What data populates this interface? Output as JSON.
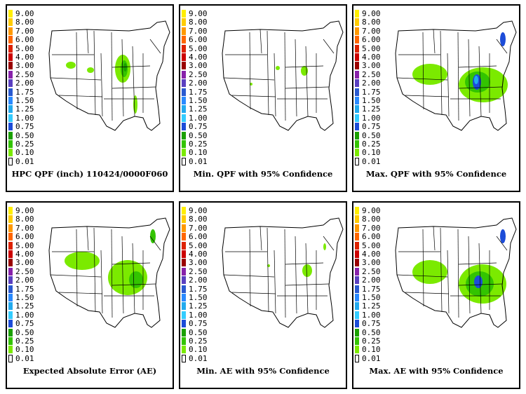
{
  "legend": {
    "labels": [
      "9.00",
      "8.00",
      "7.00",
      "6.00",
      "5.00",
      "4.00",
      "3.00",
      "2.50",
      "2.00",
      "1.75",
      "1.50",
      "1.25",
      "1.00",
      "0.75",
      "0.50",
      "0.25",
      "0.10",
      "0.01"
    ],
    "colors": [
      "#ffee00",
      "#ffcc00",
      "#ff9900",
      "#ff6600",
      "#dd2200",
      "#cc0000",
      "#990000",
      "#8822aa",
      "#5a3fc0",
      "#2a5ad0",
      "#2a8aff",
      "#22aaee",
      "#33ccff",
      "#1c4cd8",
      "#1aa000",
      "#33c400",
      "#7bea00",
      "#ffffff"
    ]
  },
  "panels": [
    {
      "caption": "HPC QPF (inch) 110424/0000F060",
      "precip": "base"
    },
    {
      "caption": "Min. QPF with 95% Confidence",
      "precip": "min"
    },
    {
      "caption": "Max. QPF with 95% Confidence",
      "precip": "max"
    },
    {
      "caption": "Expected Absolute Error (AE)",
      "precip": "ae"
    },
    {
      "caption": "Min. AE with 95% Confidence",
      "precip": "aemin"
    },
    {
      "caption": "Max. AE with 95% Confidence",
      "precip": "aemax"
    }
  ]
}
